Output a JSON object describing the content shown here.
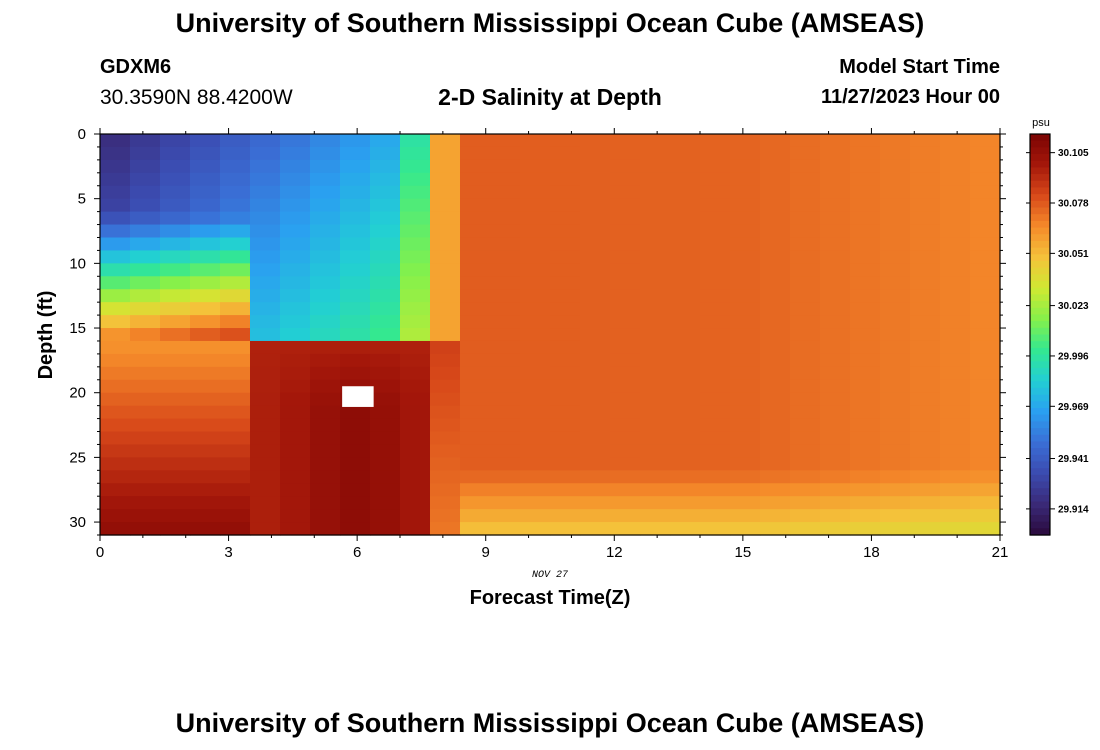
{
  "header": {
    "title": "University of Southern Mississippi Ocean Cube (AMSEAS)",
    "station": "GDXM6",
    "coords": "30.3590N  88.4200W",
    "subtitle": "2-D Salinity at Depth",
    "start_label": "Model Start Time",
    "start_date": "11/27/2023 Hour 00"
  },
  "footer": {
    "title": "University of Southern Mississippi Ocean Cube (AMSEAS)"
  },
  "chart_data": {
    "type": "heatmap",
    "title": "2-D Salinity at Depth",
    "xlabel": "Forecast Time(Z)",
    "ylabel": "Depth (ft)",
    "date_label": "NOV 27",
    "xlim": [
      0,
      21
    ],
    "ylim": [
      31,
      0
    ],
    "xticks": [
      0,
      3,
      6,
      9,
      12,
      15,
      18,
      21
    ],
    "yticks": [
      0,
      5,
      10,
      15,
      20,
      25,
      30
    ],
    "colorbar": {
      "unit": "psu",
      "min": 29.9,
      "max": 30.115,
      "ticks": [
        "30.105",
        "30.078",
        "30.051",
        "30.023",
        "29.996",
        "29.969",
        "29.941",
        "29.914"
      ]
    },
    "colormap": [
      "#2a0a3c",
      "#3a2a78",
      "#3b4bb0",
      "#3a6fd6",
      "#2aa0f0",
      "#22cfd4",
      "#34e890",
      "#86f04a",
      "#d0e832",
      "#f4c23a",
      "#f58a2a",
      "#d8491a",
      "#a4170a",
      "#7a0403"
    ],
    "missing_cell": {
      "time": 6.0,
      "depth": 20.5
    },
    "regions": [
      {
        "name": "surface-fresh-layer",
        "time": [
          0,
          7.3
        ],
        "depth": [
          0,
          14
        ],
        "salinity": "29.91-30.02"
      },
      {
        "name": "deep-high-salinity-core",
        "time": [
          4,
          7.5
        ],
        "depth": [
          17,
          31
        ],
        "salinity": "30.09-30.11"
      },
      {
        "name": "mixed-mid-period",
        "time": [
          8,
          19
        ],
        "depth": [
          0,
          29
        ],
        "salinity": "30.07-30.08"
      },
      {
        "name": "late-fresh-trend",
        "time": [
          19,
          21
        ],
        "depth": [
          0,
          31
        ],
        "salinity": "30.05-30.06"
      }
    ]
  }
}
